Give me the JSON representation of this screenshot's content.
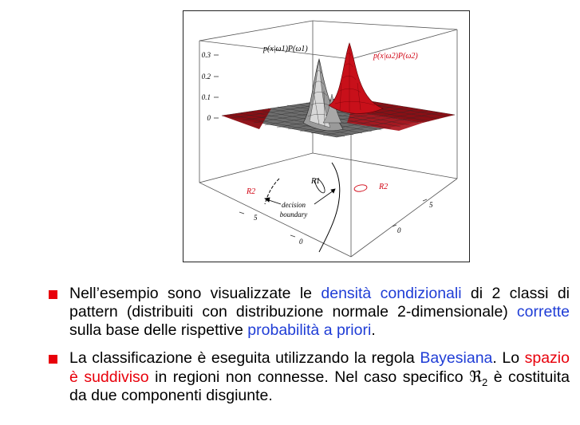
{
  "figure": {
    "z_ticks": [
      "0.3",
      "0.2",
      "0.1",
      "0"
    ],
    "label_class1": "p(x|ω1)P(ω1)",
    "label_class2": "p(x|ω2)P(ω2)",
    "region_r1": "R1",
    "region_r2_left": "R2",
    "region_r2_right": "R2",
    "decision_label_line1": "decision",
    "decision_label_line2": "boundary",
    "left_axis_ticks": [
      "5",
      "5",
      "0"
    ],
    "right_axis_ticks": [
      "5",
      "0"
    ],
    "colors": {
      "class1": "#8c8c8c",
      "class2": "#c8101a",
      "blue_text": "#1f3dd6",
      "red_text": "#e8000b"
    }
  },
  "bullets": [
    {
      "p1": "Nell’esempio sono visualizzate le ",
      "h1": "densità condizionali",
      "p2": " di 2 classi di pattern (distribuiti con distribuzione normale 2-dimensionale) ",
      "h2": "corrette",
      "p3": " sulla base delle rispettive ",
      "h3": "probabilità a priori",
      "p4": "."
    },
    {
      "p1": "La classificazione è eseguita utilizzando la regola ",
      "h1": "Bayesiana",
      "p2": ". Lo ",
      "h2": "spazio è suddiviso",
      "p3": " in regioni non connesse. Nel caso specifico ",
      "sym": "ℜ",
      "sub": "2",
      "p4": " è costituita da due componenti disgiunte."
    }
  ]
}
